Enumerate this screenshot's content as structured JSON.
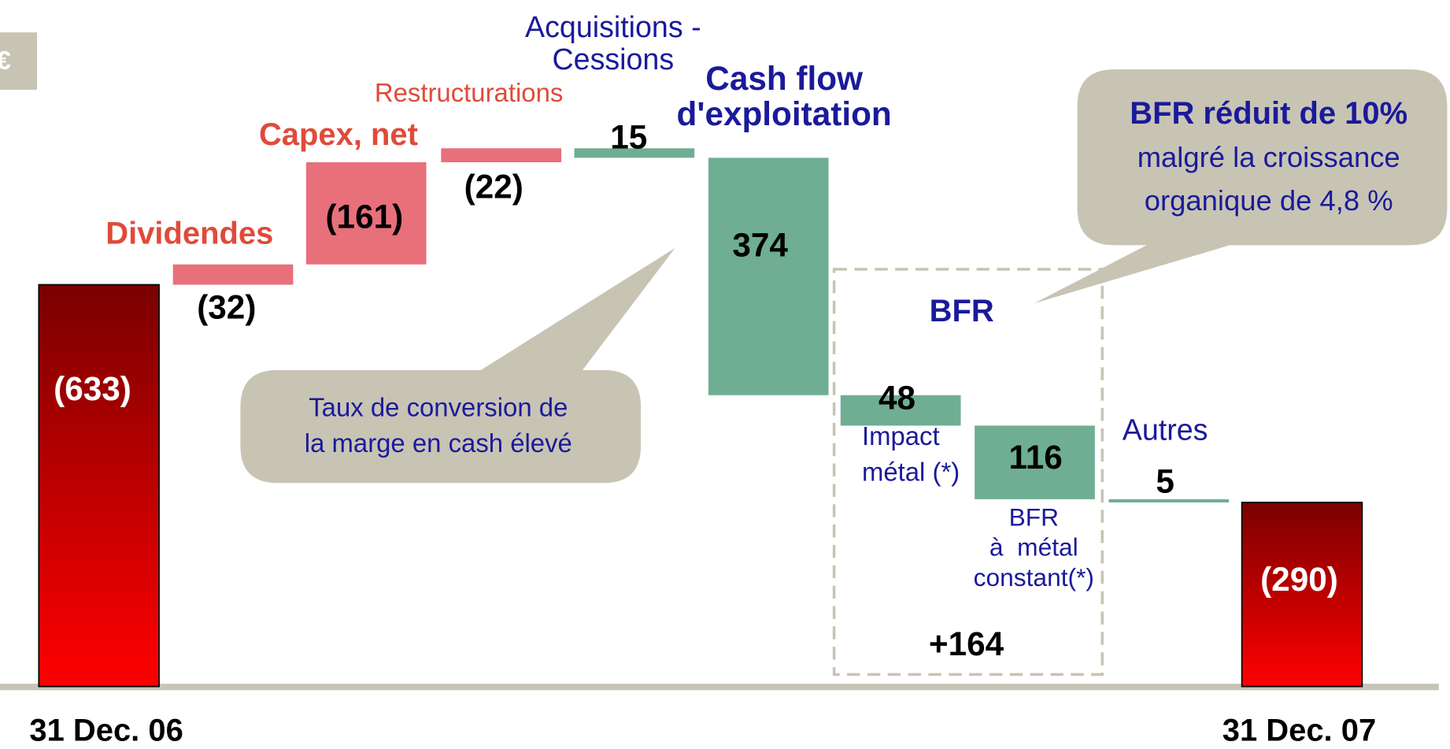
{
  "chart_data": {
    "type": "waterfall",
    "unit_label": "€",
    "categories": [
      "31 Dec. 06",
      "Dividendes",
      "Capex, net",
      "Restructurations",
      "Acquisitions -\nCessions",
      "Cash flow\nd'exploitation",
      "Impact\nmétal (*)",
      "BFR\nà  métal\nconstant(*)",
      "Autres",
      "31 Dec. 07"
    ],
    "values": [
      -633,
      -32,
      -161,
      -22,
      15,
      374,
      48,
      116,
      5,
      -290
    ],
    "value_labels": [
      "(633)",
      "(32)",
      "(161)",
      "(22)",
      "15",
      "374",
      "48",
      "116",
      "5",
      "(290)"
    ],
    "colors": {
      "total_top": "#7a0000",
      "total_bottom": "#ff0000",
      "decrease": "#e8707a",
      "increase": "#6fae93"
    },
    "bfr_group": {
      "title": "BFR",
      "total": "+164"
    },
    "callouts": [
      {
        "text": "Taux de conversion de\nla marge en cash élevé"
      },
      {
        "title": "BFR réduit de 10%",
        "text": "malgré la croissance\norganique de 4,8 %"
      }
    ]
  }
}
